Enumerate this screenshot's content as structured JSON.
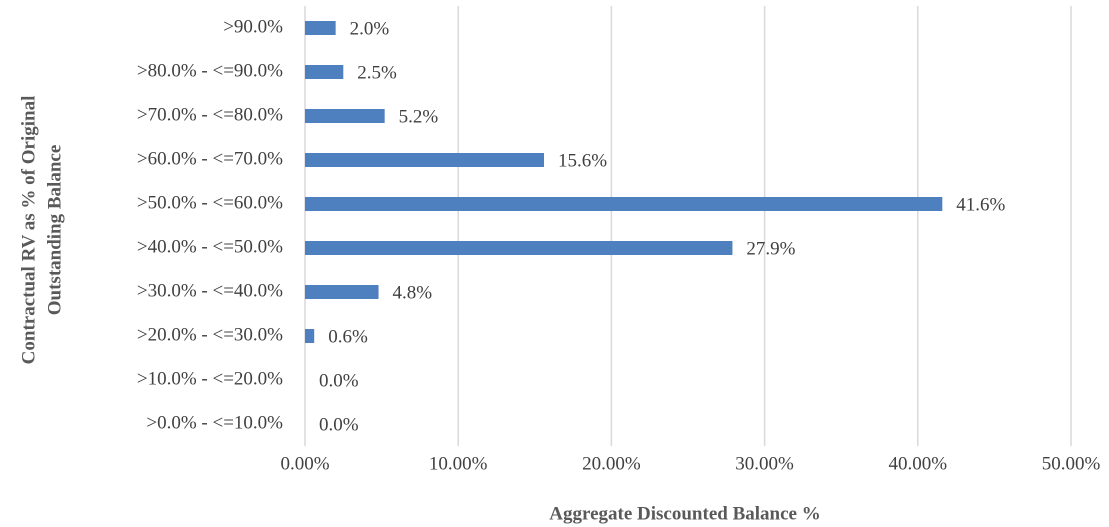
{
  "chart_data": {
    "type": "hbar",
    "x_label": "Aggregate Discounted Balance %",
    "y_label": [
      "Contractual RV as % of Original",
      "Outstanding Balance"
    ],
    "categories": [
      ">90.0%",
      ">80.0% - <=90.0%",
      ">70.0% - <=80.0%",
      ">60.0% - <=70.0%",
      ">50.0% - <=60.0%",
      ">40.0% - <=50.0%",
      ">30.0% - <=40.0%",
      ">20.0% - <=30.0%",
      ">10.0% - <=20.0%",
      ">0.0% - <=10.0%"
    ],
    "values": [
      2.0,
      2.5,
      5.2,
      15.6,
      41.6,
      27.9,
      4.8,
      0.6,
      0.0,
      0.0
    ],
    "value_labels": [
      "2.0%",
      "2.5%",
      "5.2%",
      "15.6%",
      "41.6%",
      "27.9%",
      "4.8%",
      "0.6%",
      "0.0%",
      "0.0%"
    ],
    "color": "#4e7fbe",
    "xlim": [
      0,
      50
    ],
    "xticks": [
      {
        "value": 0,
        "label": "0.00%"
      },
      {
        "value": 10,
        "label": "10.00%"
      },
      {
        "value": 20,
        "label": "20.00%"
      },
      {
        "value": 30,
        "label": "30.00%"
      },
      {
        "value": 40,
        "label": "40.00%"
      },
      {
        "value": 50,
        "label": "50.00%"
      }
    ],
    "grid": true
  }
}
